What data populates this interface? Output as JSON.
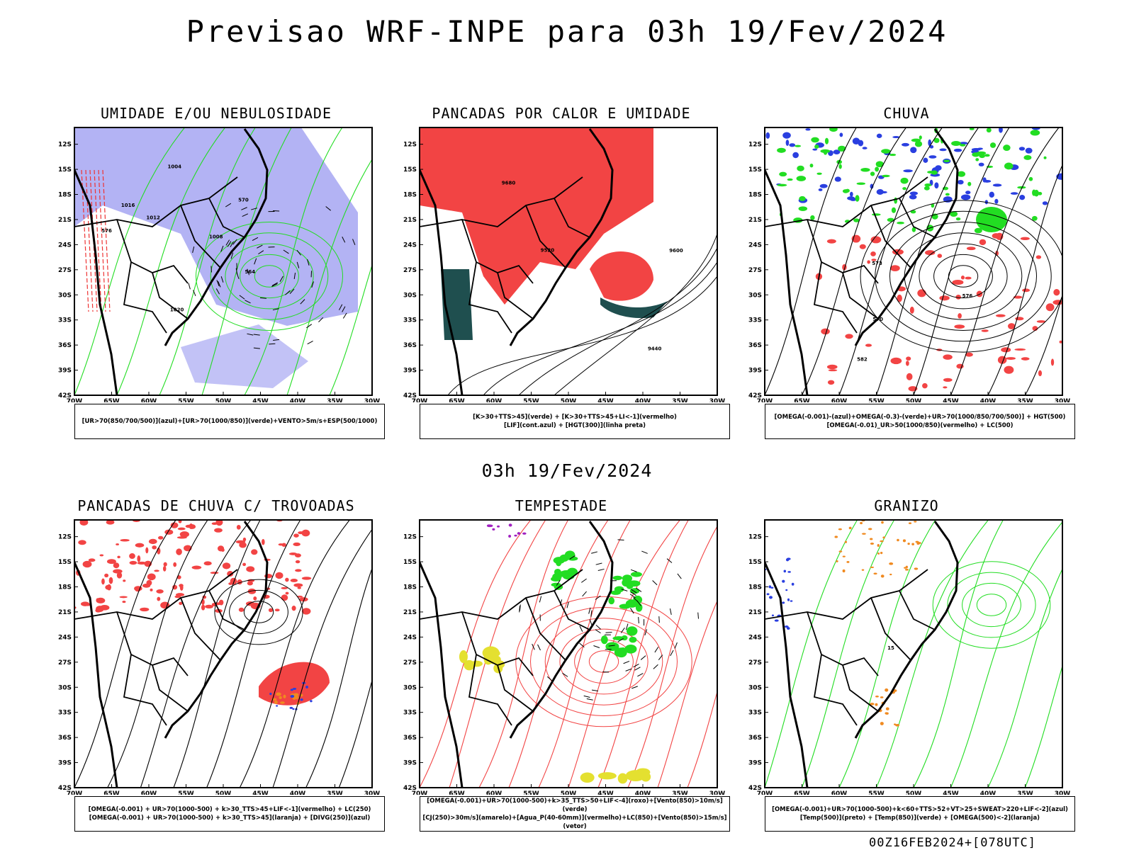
{
  "header": {
    "title": "Previsao WRF-INPE  para 03h 19/Fev/2024",
    "mid_stamp": "03h 19/Fev/2024",
    "run_stamp": "00Z16FEB2024+[078UTC]"
  },
  "axes": {
    "lat_ticks": [
      "12S",
      "15S",
      "18S",
      "21S",
      "24S",
      "27S",
      "30S",
      "33S",
      "36S",
      "39S",
      "42S"
    ],
    "lon_ticks": [
      "70W",
      "65W",
      "60W",
      "55W",
      "50W",
      "45W",
      "40W",
      "35W",
      "30W"
    ]
  },
  "colors": {
    "humidity_blue": "#9a9af0",
    "humidity_green": "#22dd22",
    "instability_red": "#f24444",
    "lifted_dark": "#1f4f4f",
    "rain_blue": "#2a3fe0",
    "rain_green": "#22dd22",
    "storm_yellow": "#e4e030",
    "storm_purple": "#a020c0",
    "hail_orange": "#f08a20",
    "streamline_black": "#000000"
  },
  "panels": [
    {
      "title": "UMIDADE E/OU NEBULOSIDADE",
      "legend": [
        "[UR>70(850/700/500)](azul)+[UR>70(1000/850)](verde)+VENTO>5m/s+ESP(500/1000)"
      ],
      "contour_labels": [
        "1012",
        "1016",
        "1008",
        "1004",
        "1020",
        "570",
        "576",
        "564"
      ]
    },
    {
      "title": "PANCADAS POR CALOR E UMIDADE",
      "legend": [
        "[K>30+TTS>45](verde) + [K>30+TTS>45+LI<-1](vermelho)",
        "[LIF](cont.azul) + [HGT(300)](linha preta)"
      ],
      "contour_labels": [
        "9680",
        "9600",
        "9520",
        "9440"
      ]
    },
    {
      "title": "CHUVA",
      "legend": [
        "[OMEGA(-0.001)-(azul)+OMEGA(-0.3)-(verde)+UR>70(1000/850/700/500)] + HGT(500)",
        "[OMEGA(-0.01)_UR>50(1000/850)(vermelho) + LC(500)"
      ],
      "contour_labels": [
        "582",
        "576",
        "573",
        "570"
      ]
    },
    {
      "title": "PANCADAS DE CHUVA C/ TROVOADAS",
      "legend": [
        "[OMEGA(-0.001) + UR>70(1000-500) + k>30_TTS>45+LIF<-1](vermelho) + LC(250)",
        "[OMEGA(-0.001) + UR>70(1000-500) + k>30_TTS>45](laranja) + [DIVG(250)](azul)"
      ],
      "contour_labels": []
    },
    {
      "title": "TEMPESTADE",
      "legend": [
        "[OMEGA(-0.001)+UR>70(1000-500)+k>35_TTS>50+LIF<-4](roxo)+[Vento(850)>10m/s](verde)",
        "[CJ(250)>30m/s](amarelo)+[Agua_P(40-60mm)](vermelho)+LC(850)+[Vento(850)>15m/s](vetor)"
      ],
      "contour_labels": []
    },
    {
      "title": "GRANIZO",
      "legend": [
        "[OMEGA(-0.001)+UR>70(1000-500)+k<60+TTS>52+VT>25+SWEAT>220+LIF<-2](azul)",
        "[Temp(500)](preto) + [Temp(850)](verde) + [OMEGA(500)<-2](laranja)"
      ],
      "contour_labels": [
        "15"
      ]
    }
  ]
}
